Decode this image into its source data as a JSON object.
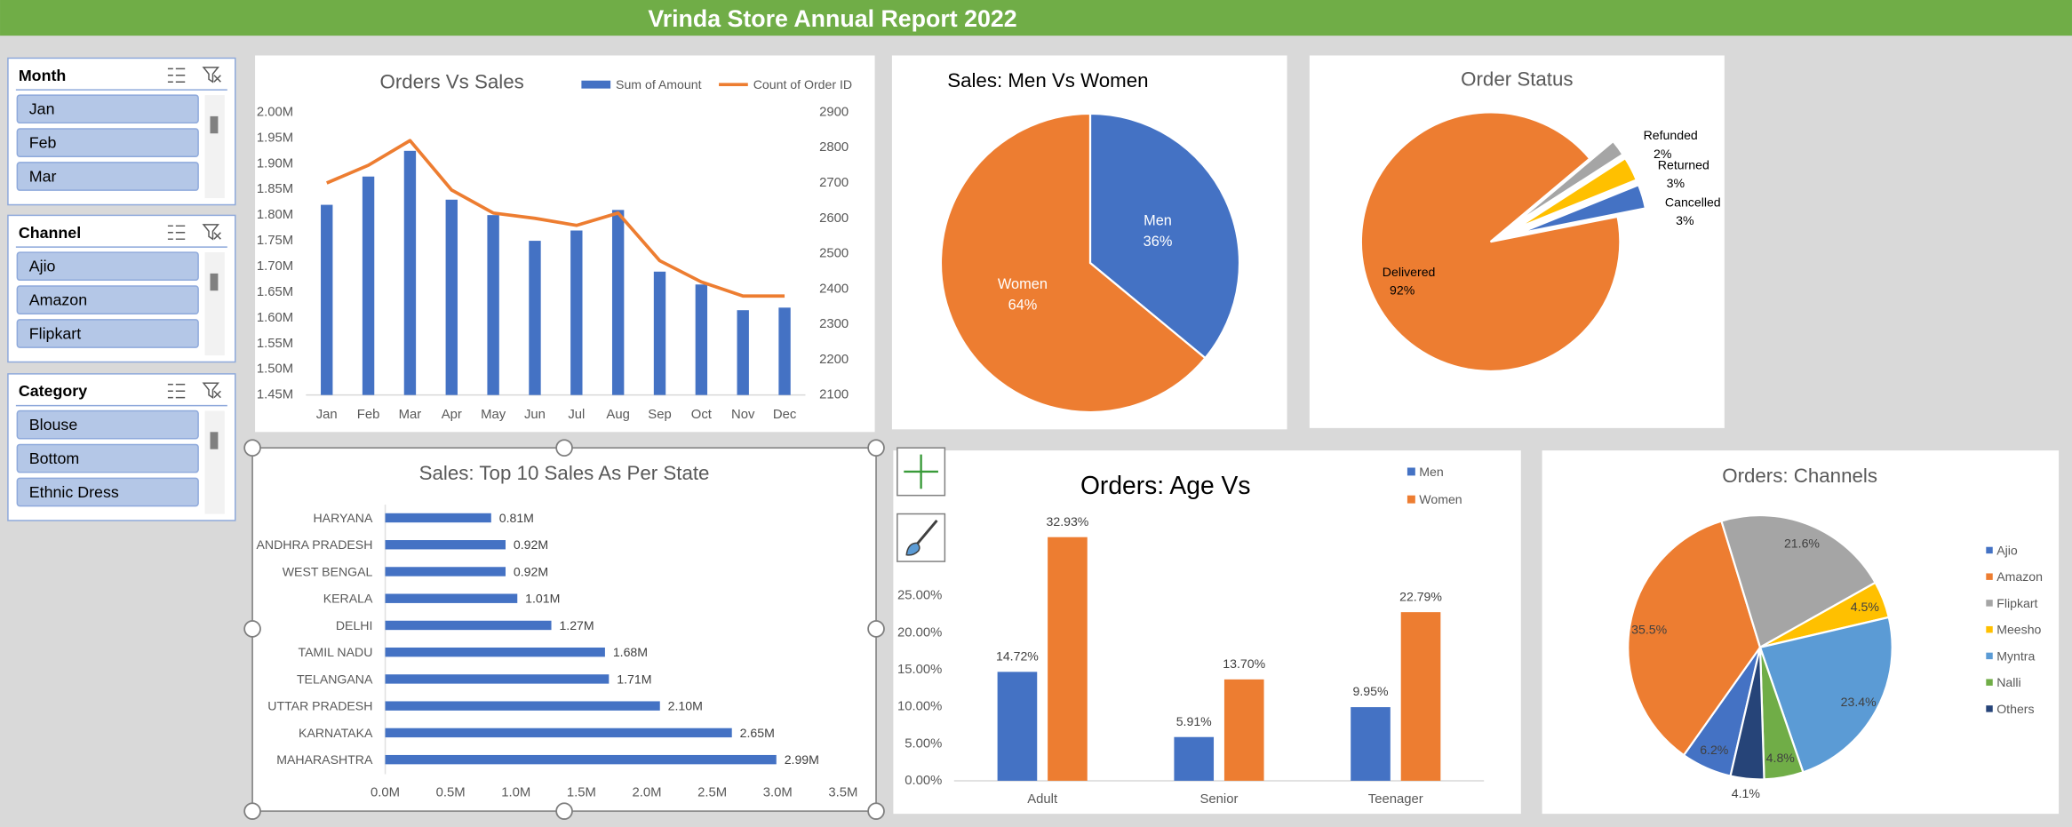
{
  "title": "Vrinda Store Annual Report 2022",
  "slicers": [
    {
      "title": "Month",
      "items": [
        "Jan",
        "Feb",
        "Mar"
      ]
    },
    {
      "title": "Channel",
      "items": [
        "Ajio",
        "Amazon",
        "Flipkart"
      ]
    },
    {
      "title": "Category",
      "items": [
        "Blouse",
        "Bottom",
        "Ethnic Dress"
      ]
    }
  ],
  "chart_data": [
    {
      "type": "combo",
      "title": "Orders Vs Sales",
      "legend": "top",
      "categories": [
        "Jan",
        "Feb",
        "Mar",
        "Apr",
        "May",
        "Jun",
        "Jul",
        "Aug",
        "Sep",
        "Oct",
        "Nov",
        "Dec"
      ],
      "series": [
        {
          "name": "Sum of Amount",
          "type": "bar",
          "color": "#4472c4",
          "values": [
            1.82,
            1.875,
            1.925,
            1.83,
            1.8,
            1.75,
            1.77,
            1.81,
            1.69,
            1.665,
            1.615,
            1.62
          ]
        },
        {
          "name": "Count of Order ID",
          "type": "line",
          "axis": "y2",
          "color": "#ed7d31",
          "values": [
            2700,
            2750,
            2820,
            2680,
            2615,
            2600,
            2580,
            2615,
            2480,
            2420,
            2380,
            2380
          ]
        }
      ],
      "ylim": [
        1.45,
        2.0
      ],
      "yticks": [
        {
          "value": 1.45,
          "label": "1.45M"
        },
        {
          "value": 1.5,
          "label": "1.50M"
        },
        {
          "value": 1.55,
          "label": "1.55M"
        },
        {
          "value": 1.6,
          "label": "1.60M"
        },
        {
          "value": 1.65,
          "label": "1.65M"
        },
        {
          "value": 1.7,
          "label": "1.70M"
        },
        {
          "value": 1.75,
          "label": "1.75M"
        },
        {
          "value": 1.8,
          "label": "1.80M"
        },
        {
          "value": 1.85,
          "label": "1.85M"
        },
        {
          "value": 1.9,
          "label": "1.90M"
        },
        {
          "value": 1.95,
          "label": "1.95M"
        },
        {
          "value": 2.0,
          "label": "2.00M"
        }
      ],
      "y2lim": [
        2100,
        2900
      ],
      "y2ticks": [
        2100,
        2200,
        2300,
        2400,
        2500,
        2600,
        2700,
        2800,
        2900
      ]
    },
    {
      "type": "pie",
      "title": "Sales: Men Vs Women",
      "categories": [
        "Men",
        "Women"
      ],
      "values": [
        36,
        64
      ],
      "value_labels": [
        "36%",
        "64%"
      ],
      "colors": [
        "#4472c4",
        "#ed7d31"
      ]
    },
    {
      "type": "pie",
      "title": "Order Status",
      "categories": [
        "Refunded",
        "Returned",
        "Cancelled",
        "Delivered"
      ],
      "values": [
        2,
        3,
        3,
        92
      ],
      "value_labels": [
        "2%",
        "3%",
        "3%",
        "92%"
      ],
      "colors": [
        "#a5a5a5",
        "#ffc000",
        "#4472c4",
        "#ed7d31"
      ]
    },
    {
      "type": "barh",
      "title": "Sales: Top 10 Sales As Per State",
      "color": "#4472c4",
      "categories": [
        "HARYANA",
        "ANDHRA PRADESH",
        "WEST BENGAL",
        "KERALA",
        "DELHI",
        "TAMIL NADU",
        "TELANGANA",
        "UTTAR PRADESH",
        "KARNATAKA",
        "MAHARASHTRA"
      ],
      "values": [
        0.81,
        0.92,
        0.92,
        1.01,
        1.27,
        1.68,
        1.71,
        2.1,
        2.65,
        2.99
      ],
      "value_labels": [
        "0.81M",
        "0.92M",
        "0.92M",
        "1.01M",
        "1.27M",
        "1.68M",
        "1.71M",
        "2.10M",
        "2.65M",
        "2.99M"
      ],
      "xlim": [
        0,
        3.5
      ],
      "xticks": [
        {
          "value": 0,
          "label": "0.0M"
        },
        {
          "value": 0.5,
          "label": "0.5M"
        },
        {
          "value": 1,
          "label": "1.0M"
        },
        {
          "value": 1.5,
          "label": "1.5M"
        },
        {
          "value": 2,
          "label": "2.0M"
        },
        {
          "value": 2.5,
          "label": "2.5M"
        },
        {
          "value": 3,
          "label": "3.0M"
        },
        {
          "value": 3.5,
          "label": "3.5M"
        }
      ]
    },
    {
      "type": "bar",
      "title": "Orders: Age Vs",
      "legend": "top-right",
      "categories": [
        "Adult",
        "Senior",
        "Teenager"
      ],
      "series": [
        {
          "name": "Men",
          "color": "#4472c4",
          "values": [
            14.72,
            5.91,
            9.95
          ],
          "value_labels": [
            "14.72%",
            "5.91%",
            "9.95%"
          ]
        },
        {
          "name": "Women",
          "color": "#ed7d31",
          "values": [
            32.93,
            13.7,
            22.79
          ],
          "value_labels": [
            "32.93%",
            "13.70%",
            "22.79%"
          ]
        }
      ],
      "ylim": [
        0,
        35
      ],
      "yticks": [
        {
          "value": 0,
          "label": "0.00%"
        },
        {
          "value": 5,
          "label": "5.00%"
        },
        {
          "value": 10,
          "label": "10.00%"
        },
        {
          "value": 15,
          "label": "15.00%"
        },
        {
          "value": 20,
          "label": "20.00%"
        },
        {
          "value": 25,
          "label": "25.00%"
        }
      ]
    },
    {
      "type": "pie",
      "title": "Orders: Channels",
      "legend": "right",
      "categories": [
        "Ajio",
        "Amazon",
        "Flipkart",
        "Meesho",
        "Myntra",
        "Nalli",
        "Others"
      ],
      "values": [
        6.2,
        35.5,
        21.6,
        4.5,
        23.4,
        4.8,
        4.1
      ],
      "value_labels": [
        "6.2%",
        "35.5%",
        "21.6%",
        "4.5%",
        "23.4%",
        "4.8%",
        "4.1%"
      ],
      "colors": [
        "#4472c4",
        "#ed7d31",
        "#a5a5a5",
        "#ffc000",
        "#5b9bd5",
        "#70ad47",
        "#264478"
      ]
    }
  ]
}
